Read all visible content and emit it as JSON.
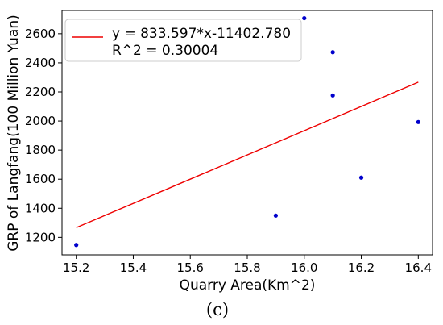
{
  "chart_data": {
    "type": "scatter",
    "xlabel": "Quarry Area(Km^2)",
    "ylabel": "GRP of Langfang(100 Million Yuan)",
    "xlim": [
      15.15,
      16.45
    ],
    "ylim": [
      1080,
      2760
    ],
    "xticks": [
      15.2,
      15.4,
      15.6,
      15.8,
      16.0,
      16.2,
      16.4
    ],
    "xtick_labels": [
      "15.2",
      "15.4",
      "15.6",
      "15.8",
      "16.0",
      "16.2",
      "16.4"
    ],
    "yticks": [
      1200,
      1400,
      1600,
      1800,
      2000,
      2200,
      2400,
      2600
    ],
    "ytick_labels": [
      "1200",
      "1400",
      "1600",
      "1800",
      "2000",
      "2200",
      "2400",
      "2600"
    ],
    "grid": false,
    "legend_position": "top-left",
    "points": {
      "color": "#0000cc",
      "x": [
        15.2,
        15.9,
        16.0,
        16.1,
        16.1,
        16.2,
        16.4
      ],
      "y": [
        1148,
        1350,
        2707,
        2473,
        2176,
        1611,
        1993
      ]
    },
    "fit_line": {
      "color": "#ee0000",
      "x": [
        15.2,
        16.4
      ],
      "y": [
        1267,
        2267
      ],
      "legend_line1": "y = 833.597*x-11402.780",
      "legend_line2": "R^2 = 0.30004"
    }
  },
  "caption": "(c)"
}
